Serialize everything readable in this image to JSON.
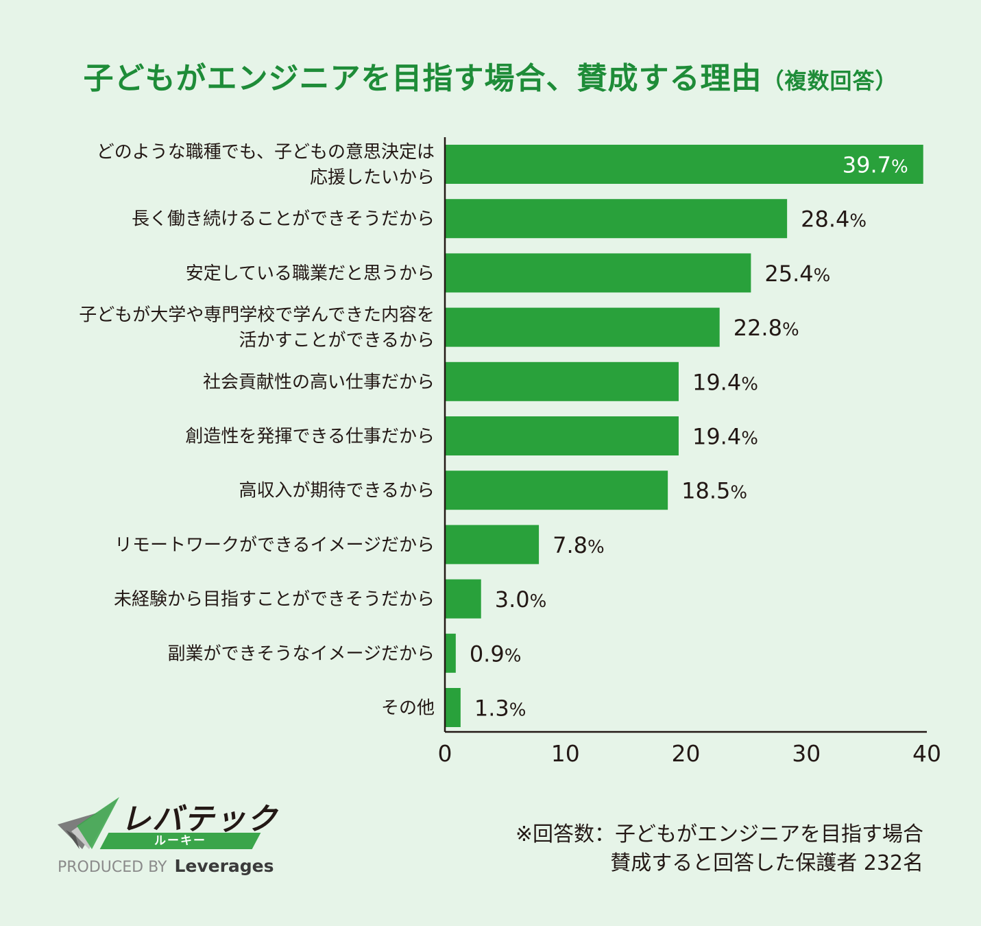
{
  "title": {
    "main": "子どもがエンジニアを目指す場合、賛成する理由",
    "sub": "（複数回答）"
  },
  "chart_data": {
    "type": "bar",
    "orientation": "horizontal",
    "title": "子どもがエンジニアを目指す場合、賛成する理由（複数回答）",
    "categories": [
      [
        "どのような職種でも、子どもの意思決定は",
        "応援したいから"
      ],
      [
        "長く働き続けることができそうだから"
      ],
      [
        "安定している職業だと思うから"
      ],
      [
        "子どもが大学や専門学校で学んできた内容を",
        "活かすことができるから"
      ],
      [
        "社会貢献性の高い仕事だから"
      ],
      [
        "創造性を発揮できる仕事だから"
      ],
      [
        "高収入が期待できるから"
      ],
      [
        "リモートワークができるイメージだから"
      ],
      [
        "未経験から目指すことができそうだから"
      ],
      [
        "副業ができそうなイメージだから"
      ],
      [
        "その他"
      ]
    ],
    "values": [
      39.7,
      28.4,
      25.4,
      22.8,
      19.4,
      19.4,
      18.5,
      7.8,
      3.0,
      0.9,
      1.3
    ],
    "value_labels": [
      "39.7",
      "28.4",
      "25.4",
      "22.8",
      "19.4",
      "19.4",
      "18.5",
      "7.8",
      "3.0",
      "0.9",
      "1.3"
    ],
    "unit": "%",
    "xlim": [
      0,
      40
    ],
    "xticks": [
      "0",
      "10",
      "20",
      "30",
      "40"
    ],
    "xlabel": "",
    "ylabel": "",
    "grid": false,
    "bar_color": "#29a13b"
  },
  "logo": {
    "name": "レバテック",
    "band": "ルーキー",
    "produced_by": "PRODUCED BY",
    "brand": "Leverages"
  },
  "note": {
    "line1": "※回答数：子どもがエンジニアを目指す場合",
    "line2": "賛成すると回答した保護者 232名"
  }
}
